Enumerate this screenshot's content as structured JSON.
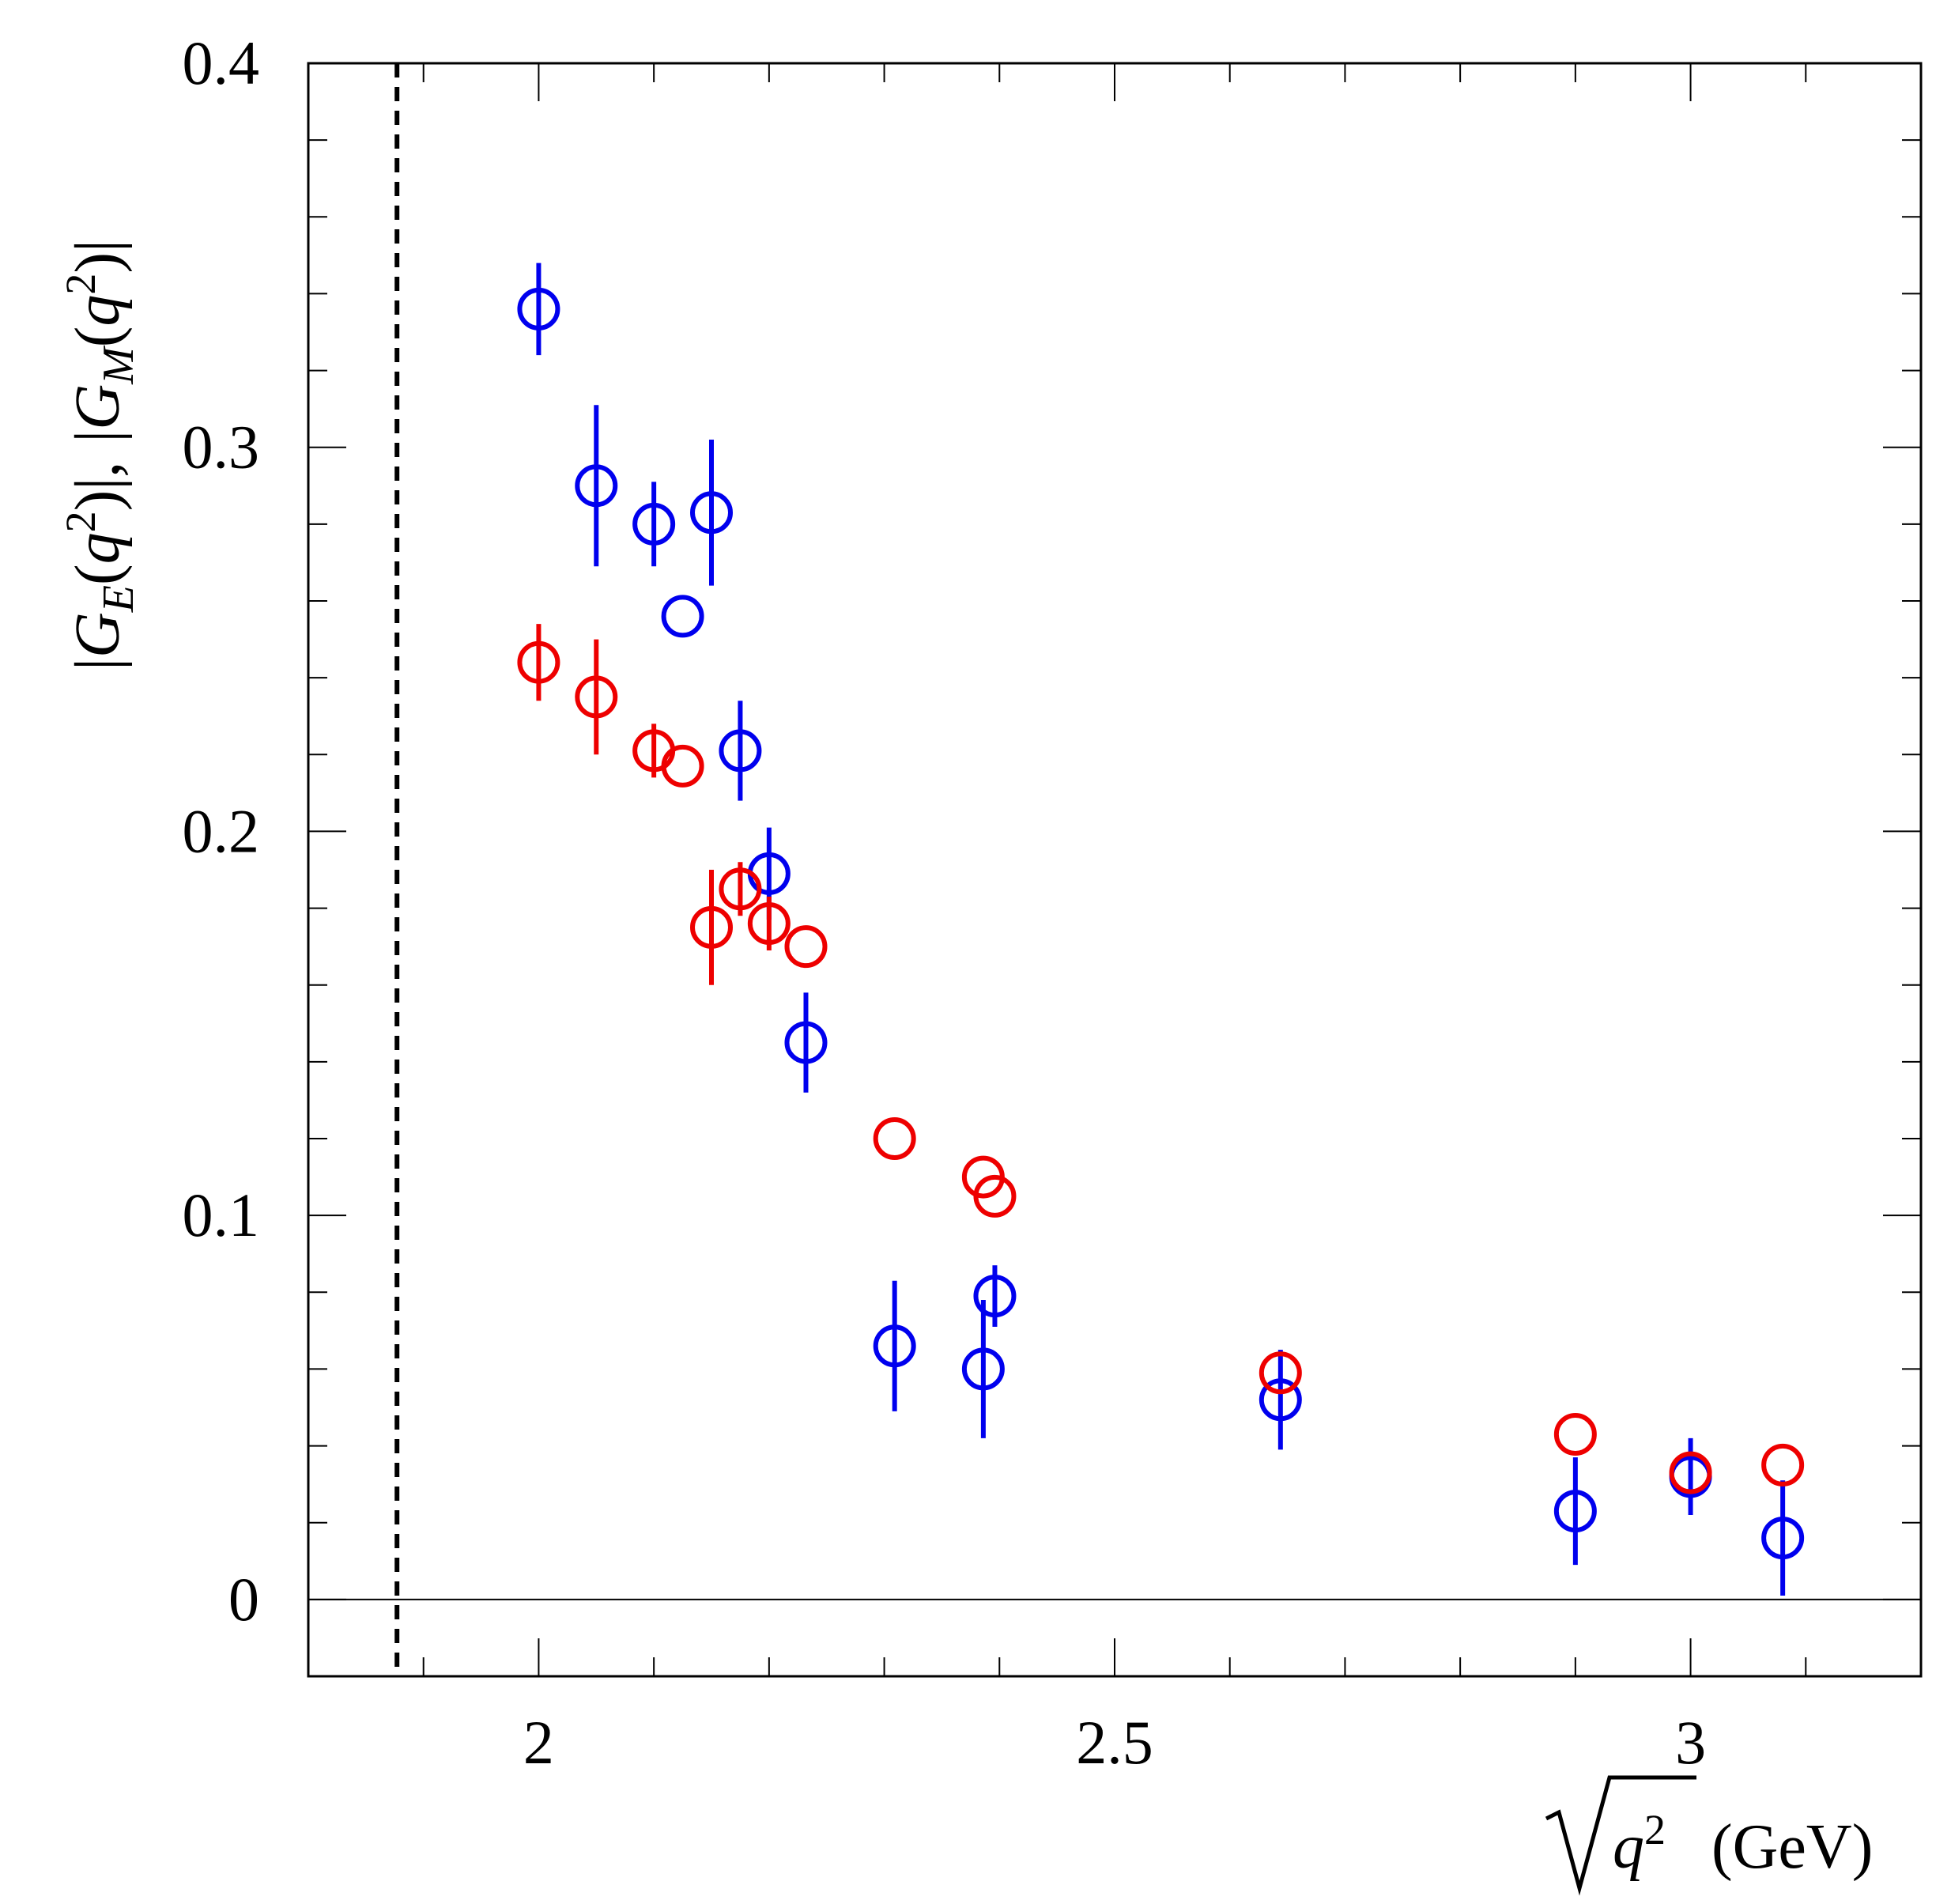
{
  "chart_data": {
    "type": "scatter",
    "title": "",
    "xlabel_parts": {
      "sqrt_var": "q",
      "sup": "2",
      "unit": "(GeV)"
    },
    "ylabel_parts": {
      "ge": "G",
      "ge_sub": "E",
      "gm": "G",
      "gm_sub": "M",
      "var": "q",
      "sup": "2",
      "sep": ",",
      "bar": "|",
      "open": "(",
      "close": ")"
    },
    "xlim": [
      1.8,
      3.2
    ],
    "ylim": [
      -0.02,
      0.4
    ],
    "x_ticks": [
      {
        "value": 2.0,
        "label": "2"
      },
      {
        "value": 2.5,
        "label": "2.5"
      },
      {
        "value": 3.0,
        "label": "3"
      }
    ],
    "y_ticks": [
      {
        "value": 0.0,
        "label": "0"
      },
      {
        "value": 0.1,
        "label": "0.1"
      },
      {
        "value": 0.2,
        "label": "0.2"
      },
      {
        "value": 0.3,
        "label": "0.3"
      },
      {
        "value": 0.4,
        "label": "0.4"
      }
    ],
    "x_minor_step": 0.1,
    "y_minor_step": 0.02,
    "threshold_line_x": 1.877,
    "zero_line": true,
    "series": [
      {
        "name": "|G_M(q^2)|",
        "color": "#0000ee",
        "marker": "open-circle",
        "points": [
          {
            "x": 2.0,
            "y": 0.336,
            "err": 0.012
          },
          {
            "x": 2.05,
            "y": 0.29,
            "err": 0.021
          },
          {
            "x": 2.1,
            "y": 0.28,
            "err": 0.011
          },
          {
            "x": 2.125,
            "y": 0.256,
            "err": 0.0
          },
          {
            "x": 2.15,
            "y": 0.283,
            "err": 0.019
          },
          {
            "x": 2.175,
            "y": 0.221,
            "err": 0.013
          },
          {
            "x": 2.2,
            "y": 0.189,
            "err": 0.012
          },
          {
            "x": 2.232,
            "y": 0.145,
            "err": 0.013
          },
          {
            "x": 2.309,
            "y": 0.066,
            "err": 0.017
          },
          {
            "x": 2.386,
            "y": 0.06,
            "err": 0.018
          },
          {
            "x": 2.396,
            "y": 0.079,
            "err": 0.008
          },
          {
            "x": 2.644,
            "y": 0.052,
            "err": 0.013
          },
          {
            "x": 2.9,
            "y": 0.023,
            "err": 0.014
          },
          {
            "x": 3.0,
            "y": 0.032,
            "err": 0.01
          },
          {
            "x": 3.08,
            "y": 0.016,
            "err": 0.015
          }
        ]
      },
      {
        "name": "|G_E(q^2)|",
        "color": "#ee0000",
        "marker": "open-circle",
        "points": [
          {
            "x": 2.0,
            "y": 0.244,
            "err": 0.01
          },
          {
            "x": 2.05,
            "y": 0.235,
            "err": 0.015
          },
          {
            "x": 2.1,
            "y": 0.221,
            "err": 0.007
          },
          {
            "x": 2.125,
            "y": 0.217,
            "err": 0.0
          },
          {
            "x": 2.15,
            "y": 0.175,
            "err": 0.015
          },
          {
            "x": 2.175,
            "y": 0.185,
            "err": 0.007
          },
          {
            "x": 2.2,
            "y": 0.176,
            "err": 0.007
          },
          {
            "x": 2.232,
            "y": 0.17,
            "err": 0.0
          },
          {
            "x": 2.309,
            "y": 0.12,
            "err": 0.0
          },
          {
            "x": 2.386,
            "y": 0.11,
            "err": 0.0
          },
          {
            "x": 2.396,
            "y": 0.105,
            "err": 0.0
          },
          {
            "x": 2.644,
            "y": 0.059,
            "err": 0.0
          },
          {
            "x": 2.9,
            "y": 0.043,
            "err": 0.0
          },
          {
            "x": 3.0,
            "y": 0.033,
            "err": 0.0
          },
          {
            "x": 3.08,
            "y": 0.035,
            "err": 0.0
          }
        ]
      }
    ]
  }
}
